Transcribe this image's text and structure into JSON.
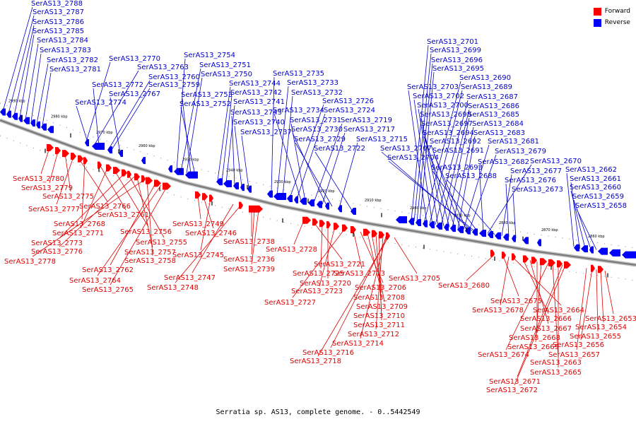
{
  "legend": {
    "forward_label": "Forward",
    "reverse_label": "Reverse",
    "forward_color": "#ff0000",
    "reverse_color": "#0000ff"
  },
  "caption": "Serratia sp. AS13, complete genome. - 0..5442549",
  "scale_ticks": [
    "2990 kbp",
    "2980 kbp",
    "2970 kbp",
    "2960 kbp",
    "2950 kbp",
    "2940 kbp",
    "2930 kbp",
    "2920 kbp",
    "2910 kbp",
    "2900 kbp",
    "2890 kbp",
    "2880 kbp",
    "2870 kbp",
    "2860 kbp"
  ],
  "forward_labels": [
    "SerAS13_2780",
    "SerAS13_2779",
    "SerAS13_2775",
    "SerAS13_2777",
    "SerAS13_2766",
    "SerAS13_2768",
    "SerAS13_2761",
    "SerAS13_2771",
    "SerAS13_2756",
    "SerAS13_2773",
    "SerAS13_2755",
    "SerAS13_2776",
    "SerAS13_2757",
    "SerAS13_2778",
    "SerAS13_2758",
    "SerAS13_2762",
    "SerAS13_2764",
    "SerAS13_2765",
    "SerAS13_2749",
    "SerAS13_2746",
    "SerAS13_2745",
    "SerAS13_2747",
    "SerAS13_2748",
    "SerAS13_2738",
    "SerAS13_2736",
    "SerAS13_2739",
    "SerAS13_2728",
    "SerAS13_2721",
    "SerAS13_2725",
    "SerAS13_2720",
    "SerAS13_2723",
    "SerAS13_2727",
    "SerAS13_2713",
    "SerAS13_2706",
    "SerAS13_2708",
    "SerAS13_2709",
    "SerAS13_2710",
    "SerAS13_2711",
    "SerAS13_2712",
    "SerAS13_2714",
    "SerAS13_2716",
    "SerAS13_2718",
    "SerAS13_2705",
    "SerAS13_2680",
    "SerAS13_2675",
    "SerAS13_2678",
    "SerAS13_2664",
    "SerAS13_2666",
    "SerAS13_2667",
    "SerAS13_2668",
    "SerAS13_2669",
    "SerAS13_2674",
    "SerAS13_2663",
    "SerAS13_2665",
    "SerAS13_2671",
    "SerAS13_2672",
    "SerAS13_2657",
    "SerAS13_2656",
    "SerAS13_2655",
    "SerAS13_2654",
    "SerAS13_2653"
  ],
  "reverse_labels": [
    "SerAS13_2788",
    "SerAS13_2787",
    "SerAS13_2786",
    "SerAS13_2785",
    "SerAS13_2784",
    "SerAS13_2783",
    "SerAS13_2782",
    "SerAS13_2781",
    "SerAS13_2770",
    "SerAS13_2763",
    "SerAS13_2772",
    "SerAS13_2760",
    "SerAS13_2759",
    "SerAS13_2767",
    "SerAS13_2774",
    "SerAS13_2754",
    "SerAS13_2751",
    "SerAS13_2750",
    "SerAS13_2744",
    "SerAS13_2742",
    "SerAS13_2753",
    "SerAS13_2752",
    "SerAS13_2741",
    "SerAS13_2743",
    "SerAS13_2740",
    "SerAS13_2737",
    "SerAS13_2735",
    "SerAS13_2733",
    "SerAS13_2732",
    "SerAS13_2726",
    "SerAS13_2724",
    "SerAS13_2734",
    "SerAS13_2731",
    "SerAS13_2719",
    "SerAS13_2717",
    "SerAS13_2730",
    "SerAS13_2729",
    "SerAS13_2715",
    "SerAS13_2722",
    "SerAS13_2701",
    "SerAS13_2699",
    "SerAS13_2696",
    "SerAS13_2695",
    "SerAS13_2690",
    "SerAS13_2703",
    "SerAS13_2689",
    "SerAS13_2702",
    "SerAS13_2687",
    "SerAS13_2700",
    "SerAS13_2686",
    "SerAS13_2698",
    "SerAS13_2685",
    "SerAS13_2697",
    "SerAS13_2684",
    "SerAS13_2694",
    "SerAS13_2683",
    "SerAS13_2692",
    "SerAS13_2681",
    "SerAS13_2691",
    "SerAS13_2679",
    "SerAS13_2707",
    "SerAS13_2704",
    "SerAS13_2693",
    "SerAS13_2682",
    "SerAS13_2670",
    "SerAS13_2688",
    "SerAS13_2677",
    "SerAS13_2676",
    "SerAS13_2673",
    "SerAS13_2662",
    "SerAS13_2661",
    "SerAS13_2660",
    "SerAS13_2659",
    "SerAS13_2658"
  ]
}
